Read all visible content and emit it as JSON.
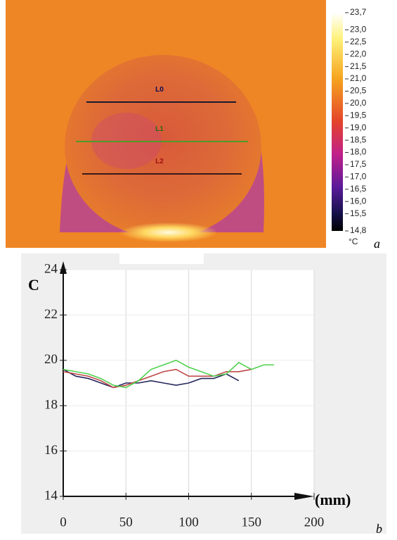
{
  "thermal_image": {
    "line_labels": [
      "L0",
      "L1",
      "L2"
    ],
    "colorbar": {
      "ticks": [
        {
          "value": 23.7,
          "label": "23,7"
        },
        {
          "value": 23.0,
          "label": "23,0"
        },
        {
          "value": 22.5,
          "label": "22,5"
        },
        {
          "value": 22.0,
          "label": "22,0"
        },
        {
          "value": 21.5,
          "label": "21,5"
        },
        {
          "value": 21.0,
          "label": "21,0"
        },
        {
          "value": 20.5,
          "label": "20,5"
        },
        {
          "value": 20.0,
          "label": "20,0"
        },
        {
          "value": 19.5,
          "label": "19,5"
        },
        {
          "value": 19.0,
          "label": "19,0"
        },
        {
          "value": 18.5,
          "label": "18,5"
        },
        {
          "value": 18.0,
          "label": "18,0"
        },
        {
          "value": 17.5,
          "label": "17,5"
        },
        {
          "value": 17.0,
          "label": "17,0"
        },
        {
          "value": 16.5,
          "label": "16,5"
        },
        {
          "value": 16.0,
          "label": "16,0"
        },
        {
          "value": 15.5,
          "label": "15,5"
        },
        {
          "value": 14.8,
          "label": "14,8"
        }
      ],
      "unit": "°C"
    },
    "panel_label": "a"
  },
  "chart_data": {
    "type": "line",
    "y_label": "C",
    "x_label": "(mm)",
    "panel_label": "b",
    "x": [
      0,
      10,
      20,
      30,
      40,
      50,
      60,
      70,
      80,
      90,
      100,
      110,
      120,
      130,
      140,
      150,
      160,
      168
    ],
    "series": [
      {
        "name": "L0",
        "color": "#26265e",
        "values": [
          19.6,
          19.3,
          19.2,
          19.0,
          18.8,
          19.0,
          19.0,
          19.1,
          19.0,
          18.9,
          19.0,
          19.2,
          19.2,
          19.4,
          19.1,
          null,
          null,
          null
        ]
      },
      {
        "name": "L2",
        "color": "#c04848",
        "values": [
          19.5,
          19.4,
          19.3,
          19.1,
          18.8,
          18.9,
          19.1,
          19.3,
          19.5,
          19.6,
          19.3,
          19.3,
          19.3,
          19.5,
          19.5,
          19.6,
          null,
          null
        ]
      },
      {
        "name": "L1",
        "color": "#4fd24f",
        "values": [
          19.6,
          19.5,
          19.4,
          19.2,
          18.9,
          18.8,
          19.1,
          19.6,
          19.8,
          20.0,
          19.7,
          19.5,
          19.3,
          19.4,
          19.9,
          19.6,
          19.8,
          19.8
        ]
      }
    ],
    "xlim": [
      0,
      200
    ],
    "ylim": [
      14,
      24
    ],
    "xticks": [
      0,
      50,
      100,
      150,
      200
    ],
    "yticks": [
      14,
      16,
      18,
      20,
      22,
      24
    ],
    "grid": true
  }
}
